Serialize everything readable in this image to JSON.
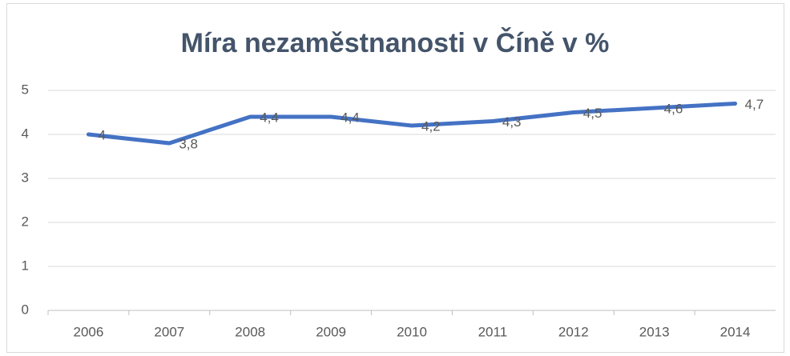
{
  "chart_data": {
    "type": "line",
    "title": "Míra nezaměstnanosti v Číně v %",
    "categories": [
      "2006",
      "2007",
      "2008",
      "2009",
      "2010",
      "2011",
      "2012",
      "2013",
      "2014"
    ],
    "series": [
      {
        "color": "#4472c4",
        "values": [
          4,
          3.8,
          4.4,
          4.4,
          4.2,
          4.3,
          4.5,
          4.6,
          4.7
        ],
        "value_labels": [
          "4",
          "3,8",
          "4,4",
          "4,4",
          "4,2",
          "4,3",
          "4,5",
          "4,6",
          "4,7"
        ]
      }
    ],
    "ylim": [
      0,
      5
    ],
    "yticks": [
      0,
      1,
      2,
      3,
      4,
      5
    ],
    "grid": true
  }
}
